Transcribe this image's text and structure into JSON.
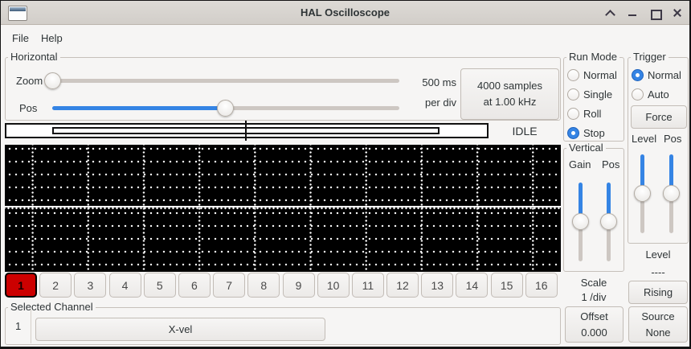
{
  "window": {
    "title": "HAL Oscilloscope"
  },
  "menu": {
    "items": [
      {
        "label": "File"
      },
      {
        "label": "Help"
      }
    ]
  },
  "horizontal": {
    "title": "Horizontal",
    "zoom_label": "Zoom",
    "pos_label": "Pos",
    "per_div": [
      "500 ms",
      "per div"
    ],
    "samples_button": [
      "4000 samples",
      "at 1.00 kHz"
    ],
    "status": "IDLE"
  },
  "run_mode": {
    "title": "Run Mode",
    "options": [
      {
        "label": "Normal",
        "selected": false
      },
      {
        "label": "Single",
        "selected": false
      },
      {
        "label": "Roll",
        "selected": false
      },
      {
        "label": "Stop",
        "selected": true
      }
    ]
  },
  "trigger": {
    "title": "Trigger",
    "options": [
      {
        "label": "Normal",
        "selected": true
      },
      {
        "label": "Auto",
        "selected": false
      }
    ],
    "force_button": "Force",
    "level_col_label": "Level",
    "pos_col_label": "Pos",
    "level_caption": "Level",
    "level_value": "----",
    "edge_button": "Rising",
    "source_button": [
      "Source",
      "None"
    ]
  },
  "vertical": {
    "title": "Vertical",
    "gain_label": "Gain",
    "pos_label": "Pos",
    "scale_caption": "Scale",
    "scale_value": "1 /div",
    "offset_button": [
      "Offset",
      "0.000"
    ]
  },
  "channels": {
    "buttons": [
      "1",
      "2",
      "3",
      "4",
      "5",
      "6",
      "7",
      "8",
      "9",
      "10",
      "11",
      "12",
      "13",
      "14",
      "15",
      "16"
    ],
    "selected_index": 0
  },
  "selected_channel": {
    "title": "Selected Channel",
    "number": "1",
    "name_button": "X-vel"
  },
  "colors": {
    "accent_blue": "#3584e4",
    "selected_channel_red": "#cc0000",
    "plot_background": "#000000",
    "grid_dots": "#ffffff"
  },
  "icons": {
    "titlebar": [
      "window-icon",
      "shade-icon",
      "minimize-icon",
      "maximize-icon",
      "close-icon"
    ]
  }
}
